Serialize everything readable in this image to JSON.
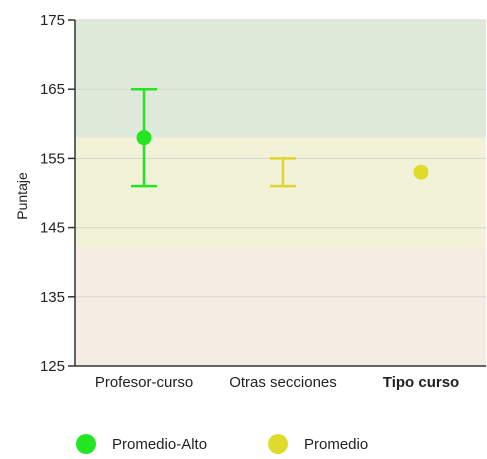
{
  "chart_data": {
    "type": "scatter",
    "ylabel": "Puntaje",
    "xlabel": "",
    "categories": [
      "Profesor-curso",
      "Otras secciones",
      "Tipo curso"
    ],
    "category_bold": [
      false,
      false,
      true
    ],
    "ylim": [
      125,
      175
    ],
    "yticks": [
      125,
      135,
      145,
      155,
      165,
      175
    ],
    "grid": true,
    "bands": [
      {
        "from": 125,
        "to": 142,
        "color": "#f5ece3"
      },
      {
        "from": 142,
        "to": 158,
        "color": "#f1f2d8"
      },
      {
        "from": 158,
        "to": 175,
        "color": "#dfeadb"
      }
    ],
    "points": [
      {
        "category": "Profesor-curso",
        "value": 158,
        "series": "Promedio-Alto"
      },
      {
        "category": "Tipo curso",
        "value": 153,
        "series": "Promedio"
      }
    ],
    "error_bars": [
      {
        "category": "Profesor-curso",
        "low": 151,
        "high": 165,
        "color": "#22e622"
      },
      {
        "category": "Otras secciones",
        "low": 151,
        "high": 155,
        "color": "#e0d430"
      }
    ],
    "legend": {
      "position": "bottom",
      "items": [
        {
          "label": "Promedio-Alto",
          "color": "#22e622"
        },
        {
          "label": "Promedio",
          "color": "#dedb2a"
        }
      ]
    }
  }
}
